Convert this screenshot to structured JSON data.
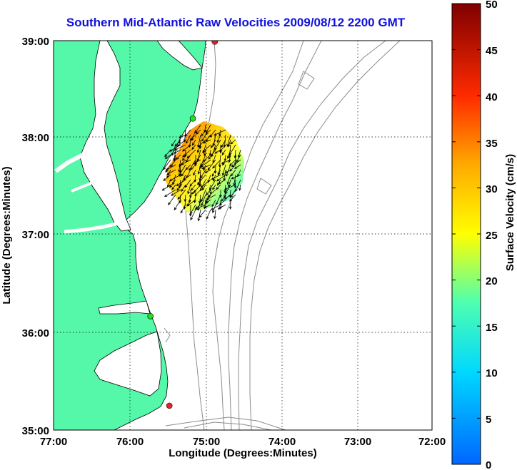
{
  "title": "Southern Mid-Atlantic Raw Velocities 2009/08/12 2200 GMT",
  "xlabel": "Longitude (Degrees:Minutes)",
  "ylabel": "Latitude (Degrees:Minutes)",
  "colorbar_label": "Surface Velocity (cm/s)",
  "x_ticks": [
    "77:00",
    "76:00",
    "75:00",
    "74:00",
    "73:00",
    "72:00"
  ],
  "y_ticks": [
    "39:00",
    "38:00",
    "37:00",
    "36:00",
    "35:00"
  ],
  "colorbar_ticks": [
    "50",
    "45",
    "40",
    "35",
    "30",
    "25",
    "20",
    "15",
    "10",
    "5",
    "0"
  ],
  "colors": {
    "land": "#55f7a8",
    "ocean": "#ffffff",
    "grid": "#000000",
    "bathymetry": "#8c8c8c",
    "title": "#1010e0",
    "station_active": "#22dd22",
    "station_inactive": "#ee2020"
  },
  "map": {
    "lon_range": [
      -77,
      -72
    ],
    "lat_range": [
      35,
      39
    ],
    "colorbar_range": [
      0,
      50
    ],
    "stations": [
      {
        "lon": -74.87,
        "lat": 38.99,
        "status": "inactive"
      },
      {
        "lon": -75.16,
        "lat": 38.2,
        "status": "active"
      },
      {
        "lon": -75.72,
        "lat": 36.17,
        "status": "active"
      },
      {
        "lon": -75.47,
        "lat": 35.25,
        "status": "inactive"
      }
    ]
  }
}
